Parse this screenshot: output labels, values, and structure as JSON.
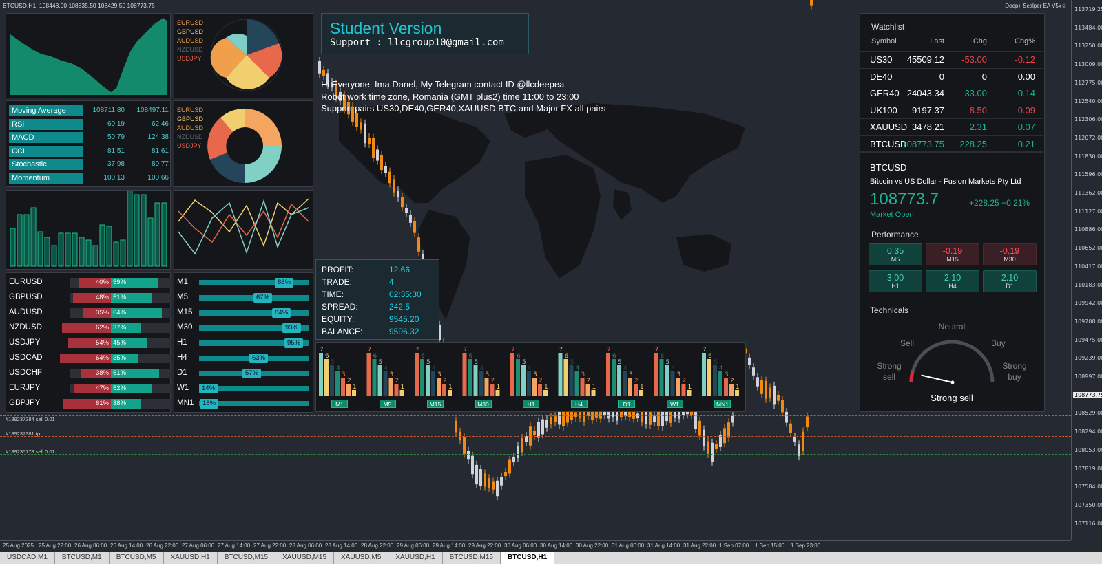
{
  "chart_header": {
    "symbol_tf": "BTCUSD,H1",
    "ohlc": "108448.00 108835.50 108429.50 108773.75",
    "ea_name": "Deep+ Scalper EA V5x☺"
  },
  "colors": {
    "accent": "#0f8a8c",
    "up": "#cfd3d9",
    "down": "#f28a12",
    "sell": "#a8313b",
    "buy": "#13a38a",
    "cyan": "#22d4ec"
  },
  "price_axis": [
    "113719.25",
    "113484.00",
    "113250.00",
    "113009.00",
    "112775.00",
    "112540.00",
    "112306.00",
    "112072.00",
    "111830.00",
    "111596.00",
    "111362.00",
    "111127.00",
    "110886.00",
    "110652.00",
    "110417.00",
    "110183.00",
    "109942.00",
    "109708.00",
    "109475.00",
    "109239.00",
    "108997.00",
    "108773.75",
    "108529.00",
    "108294.00",
    "108053.00",
    "107819.00",
    "107584.00",
    "107350.00",
    "107116.00"
  ],
  "time_axis": [
    "25 Aug 2025",
    "25 Aug 22:00",
    "26 Aug 06:00",
    "26 Aug 14:00",
    "26 Aug 22:00",
    "27 Aug 06:00",
    "27 Aug 14:00",
    "27 Aug 22:00",
    "28 Aug 06:00",
    "28 Aug 14:00",
    "28 Aug 22:00",
    "29 Aug 06:00",
    "29 Aug 14:00",
    "29 Aug 22:00",
    "30 Aug 06:00",
    "30 Aug 14:00",
    "30 Aug 22:00",
    "31 Aug 06:00",
    "31 Aug 14:00",
    "31 Aug 22:00",
    "1 Sep 07:00",
    "1 Sep 15:00",
    "1 Sep 23:00"
  ],
  "tabs": [
    "USDCAD,M1",
    "BTCUSD,M1",
    "BTCUSD,M5",
    "XAUUSD,H1",
    "BTCUSD,M15",
    "XAUUSD,M15",
    "XAUUSD,M5",
    "XAUUSD,H1",
    "BTCUSD,M15",
    "BTCUSD,H1"
  ],
  "order_lines": [
    {
      "label": "#189237384 sell 0.01"
    },
    {
      "label": "#189237381 tp"
    },
    {
      "label": "#189235778 sell 0.01"
    }
  ],
  "banner": {
    "title": "Student Version",
    "support": "Support : llcgroup10@gmail.com"
  },
  "info_text": [
    "Hi Everyone. Ima Danel, My Telegram contact ID @llcdeepea",
    "Robot work time zone, Romania (GMT plus2) time 11:00 to 23:00",
    "Support pairs US30,DE40,GER40,XAUUSD,BTC and Major FX all pairs"
  ],
  "pie_legend": [
    {
      "name": "EURUSD",
      "color": "#f0a04b"
    },
    {
      "name": "GBPUSD",
      "color": "#f2cf6e"
    },
    {
      "name": "AUDUSD",
      "color": "#f09c3c"
    },
    {
      "name": "NZDUSD",
      "color": "#5a6470"
    },
    {
      "name": "USDJPY",
      "color": "#e8604c"
    }
  ],
  "indicators": [
    {
      "name": "Moving Average",
      "v1": "108711.80",
      "v2": "108497.11"
    },
    {
      "name": "RSI",
      "v1": "60.19",
      "v2": "62.46"
    },
    {
      "name": "MACD",
      "v1": "50.79",
      "v2": "124.38"
    },
    {
      "name": "CCI",
      "v1": "81.51",
      "v2": "81.61"
    },
    {
      "name": "Stochastic",
      "v1": "37.98",
      "v2": "80.77"
    },
    {
      "name": "Momentum",
      "v1": "100.13",
      "v2": "100.66"
    }
  ],
  "pairs": [
    {
      "name": "EURUSD",
      "sell": "40%",
      "buy": "59%",
      "sell_frac": 0.4,
      "buy_frac": 0.59
    },
    {
      "name": "GBPUSD",
      "sell": "48%",
      "buy": "51%",
      "sell_frac": 0.48,
      "buy_frac": 0.51
    },
    {
      "name": "AUDUSD",
      "sell": "35%",
      "buy": "64%",
      "sell_frac": 0.35,
      "buy_frac": 0.64
    },
    {
      "name": "NZDUSD",
      "sell": "62%",
      "buy": "37%",
      "sell_frac": 0.62,
      "buy_frac": 0.37
    },
    {
      "name": "USDJPY",
      "sell": "54%",
      "buy": "45%",
      "sell_frac": 0.54,
      "buy_frac": 0.45
    },
    {
      "name": "USDCAD",
      "sell": "64%",
      "buy": "35%",
      "sell_frac": 0.64,
      "buy_frac": 0.35
    },
    {
      "name": "USDCHF",
      "sell": "38%",
      "buy": "61%",
      "sell_frac": 0.38,
      "buy_frac": 0.61
    },
    {
      "name": "EURJPY",
      "sell": "47%",
      "buy": "52%",
      "sell_frac": 0.47,
      "buy_frac": 0.52
    },
    {
      "name": "GBPJPY",
      "sell": "61%",
      "buy": "38%",
      "sell_frac": 0.61,
      "buy_frac": 0.38
    }
  ],
  "timeframes": [
    {
      "name": "M1",
      "pct": "86%",
      "frac": 0.86
    },
    {
      "name": "M5",
      "pct": "67%",
      "frac": 0.67
    },
    {
      "name": "M15",
      "pct": "84%",
      "frac": 0.84
    },
    {
      "name": "M30",
      "pct": "93%",
      "frac": 0.93
    },
    {
      "name": "H1",
      "pct": "95%",
      "frac": 0.95
    },
    {
      "name": "H4",
      "pct": "63%",
      "frac": 0.63
    },
    {
      "name": "D1",
      "pct": "57%",
      "frac": 0.57
    },
    {
      "name": "W1",
      "pct": "14%",
      "frac": 0.14
    },
    {
      "name": "MN1",
      "pct": "18%",
      "frac": 0.18
    }
  ],
  "stats": [
    {
      "label": "PROFIT:",
      "value": "12.66"
    },
    {
      "label": "TRADE:",
      "value": "4"
    },
    {
      "label": "TIME:",
      "value": "02:35:30"
    },
    {
      "label": "SPREAD:",
      "value": "242.5"
    },
    {
      "label": "EQUITY:",
      "value": "9545.20"
    },
    {
      "label": "BALANCE:",
      "value": "9596.32"
    }
  ],
  "tf_bar_groups": [
    {
      "label": "M1",
      "values": [
        7,
        6,
        5,
        4,
        3,
        2,
        1
      ]
    },
    {
      "label": "M5",
      "values": [
        7,
        6,
        5,
        4,
        3,
        2,
        1
      ]
    },
    {
      "label": "M15",
      "values": [
        7,
        6,
        5,
        4,
        3,
        2,
        1
      ]
    },
    {
      "label": "M30",
      "values": [
        7,
        6,
        5,
        4,
        3,
        2,
        1
      ]
    },
    {
      "label": "H1",
      "values": [
        7,
        6,
        5,
        4,
        3,
        2,
        1
      ]
    },
    {
      "label": "H4",
      "values": [
        7,
        6,
        5,
        4,
        3,
        2,
        1
      ]
    },
    {
      "label": "D1",
      "values": [
        7,
        6,
        5,
        4,
        3,
        2,
        1
      ]
    },
    {
      "label": "W1",
      "values": [
        7,
        6,
        5,
        4,
        3,
        2,
        1
      ]
    },
    {
      "label": "MN1",
      "values": [
        7,
        6,
        5,
        4,
        3,
        2,
        1
      ]
    }
  ],
  "watchlist": {
    "title": "Watchlist",
    "headers": [
      "Symbol",
      "Last",
      "Chg",
      "Chg%"
    ],
    "rows": [
      {
        "symbol": "US30",
        "last": "45509.12",
        "chg": "-53.00",
        "pct": "-0.12",
        "dir": "down"
      },
      {
        "symbol": "DE40",
        "last": "0",
        "chg": "0",
        "pct": "0.00",
        "dir": "flat"
      },
      {
        "symbol": "GER40",
        "last": "24043.34",
        "chg": "33.00",
        "pct": "0.14",
        "dir": "up"
      },
      {
        "symbol": "UK100",
        "last": "9197.37",
        "chg": "-8.50",
        "pct": "-0.09",
        "dir": "down"
      },
      {
        "symbol": "XAUUSD",
        "last": "3478.21",
        "chg": "2.31",
        "pct": "0.07",
        "dir": "up"
      },
      {
        "symbol": "BTCUSD",
        "last": "108773.75",
        "chg": "228.25",
        "pct": "0.21",
        "dir": "up"
      }
    ]
  },
  "symbol_info": {
    "symbol": "BTCUSD",
    "desc": "Bitcoin vs US Dollar - Fusion Markets Pty Ltd",
    "price": "108773.7",
    "change": "+228.25",
    "change_pct": "+0.21%",
    "status": "Market Open"
  },
  "performance": {
    "title": "Performance",
    "items": [
      {
        "value": "0.35",
        "label": "M5",
        "dir": "up"
      },
      {
        "value": "-0.19",
        "label": "M15",
        "dir": "down"
      },
      {
        "value": "-0.19",
        "label": "M30",
        "dir": "down"
      },
      {
        "value": "3.00",
        "label": "H1",
        "dir": "up"
      },
      {
        "value": "2.10",
        "label": "H4",
        "dir": "up"
      },
      {
        "value": "2.10",
        "label": "D1",
        "dir": "up"
      }
    ]
  },
  "technicals": {
    "title": "Technicals",
    "neutral": "Neutral",
    "sell": "Sell",
    "buy": "Buy",
    "strong_sell": "Strong sell",
    "strong_buy": "Strong buy",
    "result": "Strong sell",
    "gauge_frac": 0.05
  }
}
